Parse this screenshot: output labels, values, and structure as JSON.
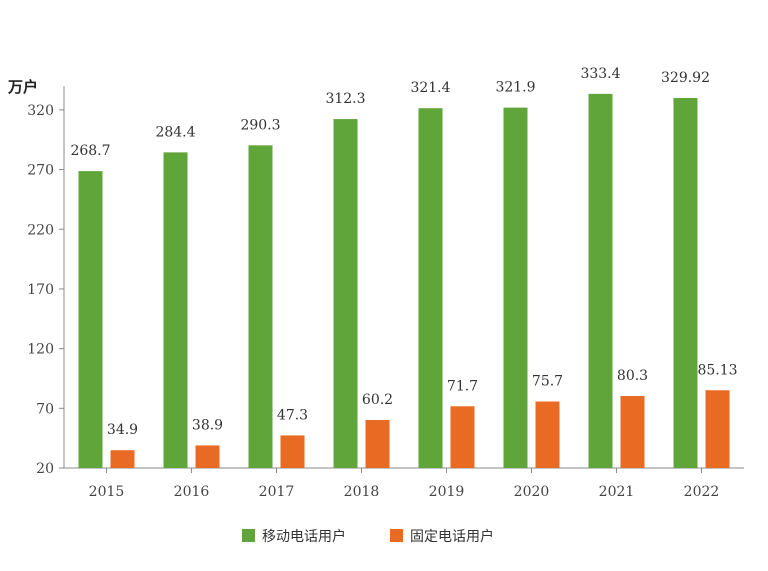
{
  "chart_data": {
    "type": "bar",
    "unit_label": "万户",
    "categories": [
      "2015",
      "2016",
      "2017",
      "2018",
      "2019",
      "2020",
      "2021",
      "2022"
    ],
    "series": [
      {
        "name": "移动电话用户",
        "color": "#5fa53a",
        "values": [
          268.7,
          284.4,
          290.3,
          312.3,
          321.4,
          321.9,
          333.4,
          329.92
        ],
        "labels": [
          "268.7",
          "284.4",
          "290.3",
          "312.3",
          "321.4",
          "321.9",
          "333.4",
          "329.92"
        ]
      },
      {
        "name": "固定电话用户",
        "color": "#e86a23",
        "values": [
          34.9,
          38.9,
          47.3,
          60.2,
          71.7,
          75.7,
          80.3,
          85.13
        ],
        "labels": [
          "34.9",
          "38.9",
          "47.3",
          "60.2",
          "71.7",
          "75.7",
          "80.3",
          "85.13"
        ]
      }
    ],
    "y_ticks": [
      "20",
      "70",
      "120",
      "170",
      "220",
      "270",
      "320"
    ],
    "ylim": [
      20,
      340
    ],
    "grid": false,
    "legend_position": "bottom-center"
  }
}
